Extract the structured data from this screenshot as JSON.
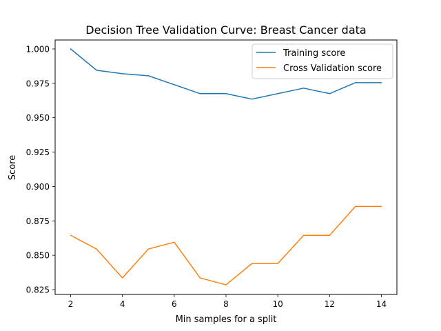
{
  "chart_data": {
    "type": "line",
    "title": "Decision Tree Validation Curve: Breast Cancer data",
    "xlabel": "Min samples for a split",
    "ylabel": "Score",
    "x": [
      2,
      3,
      4,
      5,
      6,
      7,
      8,
      9,
      10,
      11,
      12,
      13,
      14
    ],
    "xlim": [
      1.4,
      14.6
    ],
    "ylim": [
      0.8215,
      1.0065
    ],
    "xticks": [
      2,
      4,
      6,
      8,
      10,
      12,
      14
    ],
    "xtick_labels": [
      "2",
      "4",
      "6",
      "8",
      "10",
      "12",
      "14"
    ],
    "yticks": [
      0.825,
      0.85,
      0.875,
      0.9,
      0.925,
      0.95,
      0.975,
      1.0
    ],
    "ytick_labels": [
      "0.825",
      "0.850",
      "0.875",
      "0.900",
      "0.925",
      "0.950",
      "0.975",
      "1.000"
    ],
    "grid": false,
    "legend_position": "top-right",
    "series": [
      {
        "name": "Training score",
        "color": "#1f77b4",
        "values": [
          1.0,
          0.9845,
          0.982,
          0.9805,
          0.974,
          0.9675,
          0.9675,
          0.9635,
          0.9675,
          0.9715,
          0.9675,
          0.9755,
          0.9755
        ]
      },
      {
        "name": "Cross Validation score",
        "color": "#ff7f0e",
        "values": [
          0.8645,
          0.8545,
          0.8335,
          0.8545,
          0.8595,
          0.8335,
          0.8285,
          0.844,
          0.844,
          0.8645,
          0.8645,
          0.8855,
          0.8855
        ]
      }
    ]
  }
}
